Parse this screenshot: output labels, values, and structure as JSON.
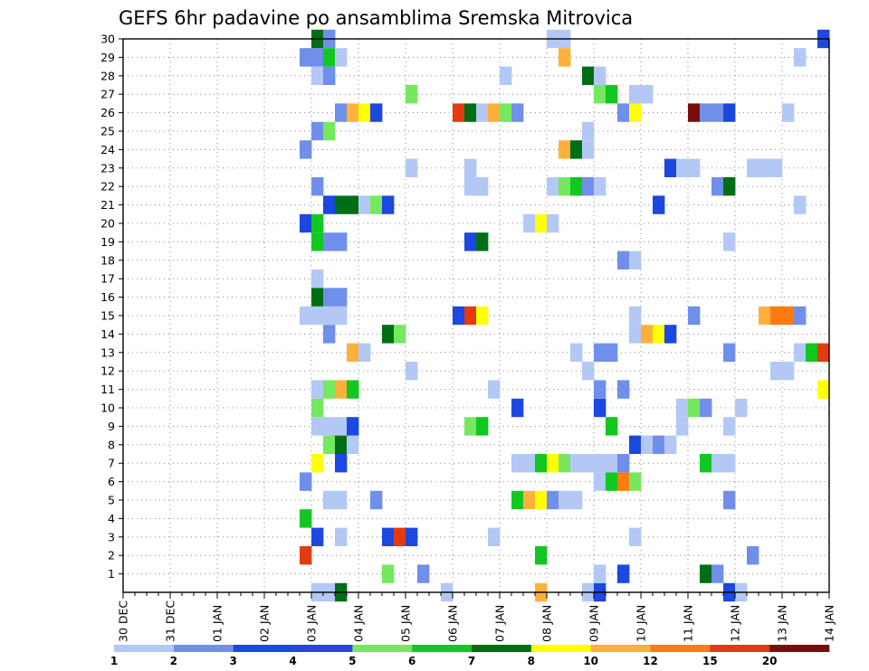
{
  "chart_data": {
    "type": "heatmap",
    "title": "GEFS 6hr padavine po ansamblima Sremska Mitrovica",
    "xlabel": "",
    "ylabel": "",
    "x_ticks": [
      "30 DEC",
      "31 DEC",
      "01 JAN",
      "02 JAN",
      "03 JAN",
      "04 JAN",
      "05 JAN",
      "06 JAN",
      "07 JAN",
      "08 JAN",
      "09 JAN",
      "10 JAN",
      "11 JAN",
      "12 JAN",
      "13 JAN",
      "14 JAN"
    ],
    "y_ticks": [
      "1",
      "2",
      "3",
      "4",
      "5",
      "6",
      "7",
      "8",
      "9",
      "10",
      "11",
      "12",
      "13",
      "14",
      "15",
      "16",
      "17",
      "18",
      "19",
      "20",
      "21",
      "22",
      "23",
      "24",
      "25",
      "26",
      "27",
      "28",
      "29",
      "30"
    ],
    "x_unit": "6-hour step from 30 DEC 00Z (4 steps per day)",
    "y_range": [
      0,
      30
    ],
    "legend": {
      "labels": [
        "1",
        "2",
        "3",
        "4",
        "5",
        "6",
        "7",
        "8",
        "10",
        "12",
        "15",
        "20"
      ],
      "colors": [
        "#b4c8f5",
        "#6f8fea",
        "#1c48e0",
        "#2a44e0",
        "#76e85e",
        "#10c820",
        "#006e14",
        "#ffff00",
        "#ffb03c",
        "#ff7a10",
        "#e43a10",
        "#7a0c0c"
      ]
    },
    "colors": {
      "1": "#b4c8f5",
      "2": "#6f8fea",
      "3": "#1c48e0",
      "5": "#76e85e",
      "6": "#10c820",
      "7": "#006e14",
      "8": "#ffff00",
      "10": "#ffb03c",
      "12": "#ff7a10",
      "15": "#e43a10",
      "20": "#7a0c0c"
    },
    "cells": [
      {
        "y": 0,
        "x": [
          16,
          17
        ],
        "v": 1
      },
      {
        "y": 0,
        "x": [
          18
        ],
        "v": 7
      },
      {
        "y": 0,
        "x": [
          27
        ],
        "v": 1
      },
      {
        "y": 0,
        "x": [
          35
        ],
        "v": 10
      },
      {
        "y": 0,
        "x": [
          39
        ],
        "v": 1
      },
      {
        "y": 0,
        "x": [
          40
        ],
        "v": 3
      },
      {
        "y": 0,
        "x": [
          51
        ],
        "v": 3
      },
      {
        "y": 0,
        "x": [
          52
        ],
        "v": 1
      },
      {
        "y": 1,
        "x": [
          22
        ],
        "v": 5
      },
      {
        "y": 1,
        "x": [
          25
        ],
        "v": 2
      },
      {
        "y": 1,
        "x": [
          40
        ],
        "v": 1
      },
      {
        "y": 1,
        "x": [
          42
        ],
        "v": 3
      },
      {
        "y": 1,
        "x": [
          49
        ],
        "v": 7
      },
      {
        "y": 1,
        "x": [
          50
        ],
        "v": 2
      },
      {
        "y": 2,
        "x": [
          15
        ],
        "v": 15
      },
      {
        "y": 2,
        "x": [
          35
        ],
        "v": 6
      },
      {
        "y": 2,
        "x": [
          53
        ],
        "v": 2
      },
      {
        "y": 3,
        "x": [
          16
        ],
        "v": 3
      },
      {
        "y": 3,
        "x": [
          18
        ],
        "v": 1
      },
      {
        "y": 3,
        "x": [
          22
        ],
        "v": 3
      },
      {
        "y": 3,
        "x": [
          23
        ],
        "v": 15
      },
      {
        "y": 3,
        "x": [
          24
        ],
        "v": 3
      },
      {
        "y": 3,
        "x": [
          31
        ],
        "v": 1
      },
      {
        "y": 3,
        "x": [
          43
        ],
        "v": 1
      },
      {
        "y": 4,
        "x": [
          15
        ],
        "v": 6
      },
      {
        "y": 5,
        "x": [
          17,
          18
        ],
        "v": 1
      },
      {
        "y": 5,
        "x": [
          21
        ],
        "v": 2
      },
      {
        "y": 5,
        "x": [
          33
        ],
        "v": 6
      },
      {
        "y": 5,
        "x": [
          34
        ],
        "v": 10
      },
      {
        "y": 5,
        "x": [
          35
        ],
        "v": 8
      },
      {
        "y": 5,
        "x": [
          36
        ],
        "v": 2
      },
      {
        "y": 5,
        "x": [
          37,
          38
        ],
        "v": 1
      },
      {
        "y": 5,
        "x": [
          51
        ],
        "v": 2
      },
      {
        "y": 6,
        "x": [
          15
        ],
        "v": 2
      },
      {
        "y": 6,
        "x": [
          40
        ],
        "v": 1
      },
      {
        "y": 6,
        "x": [
          41
        ],
        "v": 6
      },
      {
        "y": 6,
        "x": [
          42
        ],
        "v": 12
      },
      {
        "y": 6,
        "x": [
          43
        ],
        "v": 5
      },
      {
        "y": 7,
        "x": [
          16
        ],
        "v": 8
      },
      {
        "y": 7,
        "x": [
          18
        ],
        "v": 3
      },
      {
        "y": 7,
        "x": [
          33,
          34
        ],
        "v": 1
      },
      {
        "y": 7,
        "x": [
          35
        ],
        "v": 6
      },
      {
        "y": 7,
        "x": [
          36
        ],
        "v": 8
      },
      {
        "y": 7,
        "x": [
          37
        ],
        "v": 5
      },
      {
        "y": 7,
        "x": [
          38,
          39,
          40,
          41
        ],
        "v": 1
      },
      {
        "y": 7,
        "x": [
          42
        ],
        "v": 2
      },
      {
        "y": 7,
        "x": [
          49
        ],
        "v": 6
      },
      {
        "y": 7,
        "x": [
          50,
          51
        ],
        "v": 1
      },
      {
        "y": 8,
        "x": [
          17
        ],
        "v": 5
      },
      {
        "y": 8,
        "x": [
          18
        ],
        "v": 7
      },
      {
        "y": 8,
        "x": [
          19
        ],
        "v": 1
      },
      {
        "y": 8,
        "x": [
          43
        ],
        "v": 3
      },
      {
        "y": 8,
        "x": [
          44
        ],
        "v": 1
      },
      {
        "y": 8,
        "x": [
          45
        ],
        "v": 2
      },
      {
        "y": 8,
        "x": [
          46
        ],
        "v": 1
      },
      {
        "y": 9,
        "x": [
          16,
          17,
          18
        ],
        "v": 1
      },
      {
        "y": 9,
        "x": [
          19
        ],
        "v": 3
      },
      {
        "y": 9,
        "x": [
          29
        ],
        "v": 5
      },
      {
        "y": 9,
        "x": [
          30
        ],
        "v": 6
      },
      {
        "y": 9,
        "x": [
          41
        ],
        "v": 6
      },
      {
        "y": 9,
        "x": [
          47
        ],
        "v": 1
      },
      {
        "y": 9,
        "x": [
          51
        ],
        "v": 1
      },
      {
        "y": 10,
        "x": [
          16
        ],
        "v": 5
      },
      {
        "y": 10,
        "x": [
          33
        ],
        "v": 3
      },
      {
        "y": 10,
        "x": [
          40
        ],
        "v": 3
      },
      {
        "y": 10,
        "x": [
          47
        ],
        "v": 1
      },
      {
        "y": 10,
        "x": [
          48
        ],
        "v": 5
      },
      {
        "y": 10,
        "x": [
          49
        ],
        "v": 2
      },
      {
        "y": 10,
        "x": [
          52
        ],
        "v": 1
      },
      {
        "y": 11,
        "x": [
          16
        ],
        "v": 1
      },
      {
        "y": 11,
        "x": [
          17
        ],
        "v": 5
      },
      {
        "y": 11,
        "x": [
          18
        ],
        "v": 10
      },
      {
        "y": 11,
        "x": [
          19
        ],
        "v": 6
      },
      {
        "y": 11,
        "x": [
          31
        ],
        "v": 1
      },
      {
        "y": 11,
        "x": [
          40
        ],
        "v": 2
      },
      {
        "y": 11,
        "x": [
          42
        ],
        "v": 2
      },
      {
        "y": 11,
        "x": [
          59
        ],
        "v": 8
      },
      {
        "y": 12,
        "x": [
          24
        ],
        "v": 1
      },
      {
        "y": 12,
        "x": [
          39
        ],
        "v": 1
      },
      {
        "y": 12,
        "x": [
          55,
          56
        ],
        "v": 1
      },
      {
        "y": 13,
        "x": [
          19
        ],
        "v": 10
      },
      {
        "y": 13,
        "x": [
          20
        ],
        "v": 1
      },
      {
        "y": 13,
        "x": [
          38
        ],
        "v": 1
      },
      {
        "y": 13,
        "x": [
          40,
          41
        ],
        "v": 2
      },
      {
        "y": 13,
        "x": [
          51
        ],
        "v": 2
      },
      {
        "y": 13,
        "x": [
          57
        ],
        "v": 1
      },
      {
        "y": 13,
        "x": [
          58
        ],
        "v": 6
      },
      {
        "y": 13,
        "x": [
          59
        ],
        "v": 15
      },
      {
        "y": 14,
        "x": [
          17
        ],
        "v": 2
      },
      {
        "y": 14,
        "x": [
          22
        ],
        "v": 7
      },
      {
        "y": 14,
        "x": [
          23
        ],
        "v": 5
      },
      {
        "y": 14,
        "x": [
          43
        ],
        "v": 1
      },
      {
        "y": 14,
        "x": [
          44
        ],
        "v": 10
      },
      {
        "y": 14,
        "x": [
          45
        ],
        "v": 8
      },
      {
        "y": 14,
        "x": [
          46
        ],
        "v": 3
      },
      {
        "y": 15,
        "x": [
          15,
          16,
          17,
          18
        ],
        "v": 1
      },
      {
        "y": 15,
        "x": [
          28
        ],
        "v": 3
      },
      {
        "y": 15,
        "x": [
          29
        ],
        "v": 15
      },
      {
        "y": 15,
        "x": [
          30
        ],
        "v": 8
      },
      {
        "y": 15,
        "x": [
          43
        ],
        "v": 1
      },
      {
        "y": 15,
        "x": [
          48
        ],
        "v": 2
      },
      {
        "y": 15,
        "x": [
          54
        ],
        "v": 10
      },
      {
        "y": 15,
        "x": [
          55,
          56
        ],
        "v": 12
      },
      {
        "y": 15,
        "x": [
          57
        ],
        "v": 2
      },
      {
        "y": 16,
        "x": [
          16
        ],
        "v": 7
      },
      {
        "y": 16,
        "x": [
          17,
          18
        ],
        "v": 2
      },
      {
        "y": 17,
        "x": [
          16
        ],
        "v": 1
      },
      {
        "y": 18,
        "x": [
          42
        ],
        "v": 2
      },
      {
        "y": 18,
        "x": [
          43
        ],
        "v": 1
      },
      {
        "y": 19,
        "x": [
          16
        ],
        "v": 6
      },
      {
        "y": 19,
        "x": [
          17,
          18
        ],
        "v": 2
      },
      {
        "y": 19,
        "x": [
          29
        ],
        "v": 3
      },
      {
        "y": 19,
        "x": [
          30
        ],
        "v": 7
      },
      {
        "y": 19,
        "x": [
          51
        ],
        "v": 1
      },
      {
        "y": 20,
        "x": [
          15
        ],
        "v": 3
      },
      {
        "y": 20,
        "x": [
          16
        ],
        "v": 6
      },
      {
        "y": 20,
        "x": [
          34
        ],
        "v": 1
      },
      {
        "y": 20,
        "x": [
          35
        ],
        "v": 8
      },
      {
        "y": 20,
        "x": [
          36
        ],
        "v": 1
      },
      {
        "y": 21,
        "x": [
          17
        ],
        "v": 3
      },
      {
        "y": 21,
        "x": [
          18,
          19
        ],
        "v": 7
      },
      {
        "y": 21,
        "x": [
          20
        ],
        "v": 1
      },
      {
        "y": 21,
        "x": [
          21
        ],
        "v": 5
      },
      {
        "y": 21,
        "x": [
          22
        ],
        "v": 3
      },
      {
        "y": 21,
        "x": [
          45
        ],
        "v": 3
      },
      {
        "y": 21,
        "x": [
          57
        ],
        "v": 1
      },
      {
        "y": 22,
        "x": [
          16
        ],
        "v": 2
      },
      {
        "y": 22,
        "x": [
          29,
          30
        ],
        "v": 1
      },
      {
        "y": 22,
        "x": [
          36
        ],
        "v": 1
      },
      {
        "y": 22,
        "x": [
          37
        ],
        "v": 5
      },
      {
        "y": 22,
        "x": [
          38
        ],
        "v": 6
      },
      {
        "y": 22,
        "x": [
          39
        ],
        "v": 2
      },
      {
        "y": 22,
        "x": [
          40
        ],
        "v": 1
      },
      {
        "y": 22,
        "x": [
          50
        ],
        "v": 2
      },
      {
        "y": 22,
        "x": [
          51
        ],
        "v": 7
      },
      {
        "y": 23,
        "x": [
          24
        ],
        "v": 1
      },
      {
        "y": 23,
        "x": [
          29
        ],
        "v": 1
      },
      {
        "y": 23,
        "x": [
          46
        ],
        "v": 3
      },
      {
        "y": 23,
        "x": [
          47,
          48
        ],
        "v": 1
      },
      {
        "y": 23,
        "x": [
          53,
          54,
          55
        ],
        "v": 1
      },
      {
        "y": 24,
        "x": [
          15
        ],
        "v": 2
      },
      {
        "y": 24,
        "x": [
          37
        ],
        "v": 10
      },
      {
        "y": 24,
        "x": [
          38
        ],
        "v": 7
      },
      {
        "y": 24,
        "x": [
          39
        ],
        "v": 1
      },
      {
        "y": 25,
        "x": [
          16
        ],
        "v": 2
      },
      {
        "y": 25,
        "x": [
          17
        ],
        "v": 5
      },
      {
        "y": 25,
        "x": [
          39
        ],
        "v": 1
      },
      {
        "y": 26,
        "x": [
          18
        ],
        "v": 2
      },
      {
        "y": 26,
        "x": [
          19
        ],
        "v": 10
      },
      {
        "y": 26,
        "x": [
          20
        ],
        "v": 8
      },
      {
        "y": 26,
        "x": [
          21
        ],
        "v": 3
      },
      {
        "y": 26,
        "x": [
          28
        ],
        "v": 15
      },
      {
        "y": 26,
        "x": [
          29
        ],
        "v": 7
      },
      {
        "y": 26,
        "x": [
          30
        ],
        "v": 1
      },
      {
        "y": 26,
        "x": [
          31
        ],
        "v": 10
      },
      {
        "y": 26,
        "x": [
          32
        ],
        "v": 5
      },
      {
        "y": 26,
        "x": [
          33
        ],
        "v": 2
      },
      {
        "y": 26,
        "x": [
          42
        ],
        "v": 2
      },
      {
        "y": 26,
        "x": [
          43
        ],
        "v": 8
      },
      {
        "y": 26,
        "x": [
          48
        ],
        "v": 20
      },
      {
        "y": 26,
        "x": [
          49,
          50
        ],
        "v": 2
      },
      {
        "y": 26,
        "x": [
          51
        ],
        "v": 3
      },
      {
        "y": 26,
        "x": [
          56
        ],
        "v": 1
      },
      {
        "y": 27,
        "x": [
          24
        ],
        "v": 5
      },
      {
        "y": 27,
        "x": [
          40
        ],
        "v": 5
      },
      {
        "y": 27,
        "x": [
          41
        ],
        "v": 6
      },
      {
        "y": 27,
        "x": [
          43,
          44
        ],
        "v": 1
      },
      {
        "y": 28,
        "x": [
          16
        ],
        "v": 1
      },
      {
        "y": 28,
        "x": [
          17
        ],
        "v": 2
      },
      {
        "y": 28,
        "x": [
          32
        ],
        "v": 1
      },
      {
        "y": 28,
        "x": [
          39
        ],
        "v": 7
      },
      {
        "y": 28,
        "x": [
          40
        ],
        "v": 1
      },
      {
        "y": 29,
        "x": [
          15,
          16
        ],
        "v": 2
      },
      {
        "y": 29,
        "x": [
          17
        ],
        "v": 6
      },
      {
        "y": 29,
        "x": [
          18
        ],
        "v": 1
      },
      {
        "y": 29,
        "x": [
          37
        ],
        "v": 10
      },
      {
        "y": 29,
        "x": [
          57
        ],
        "v": 1
      },
      {
        "y": 30,
        "x": [
          16
        ],
        "v": 7
      },
      {
        "y": 30,
        "x": [
          17
        ],
        "v": 2
      },
      {
        "y": 30,
        "x": [
          36,
          37
        ],
        "v": 1
      },
      {
        "y": 30,
        "x": [
          59
        ],
        "v": 3
      }
    ]
  }
}
